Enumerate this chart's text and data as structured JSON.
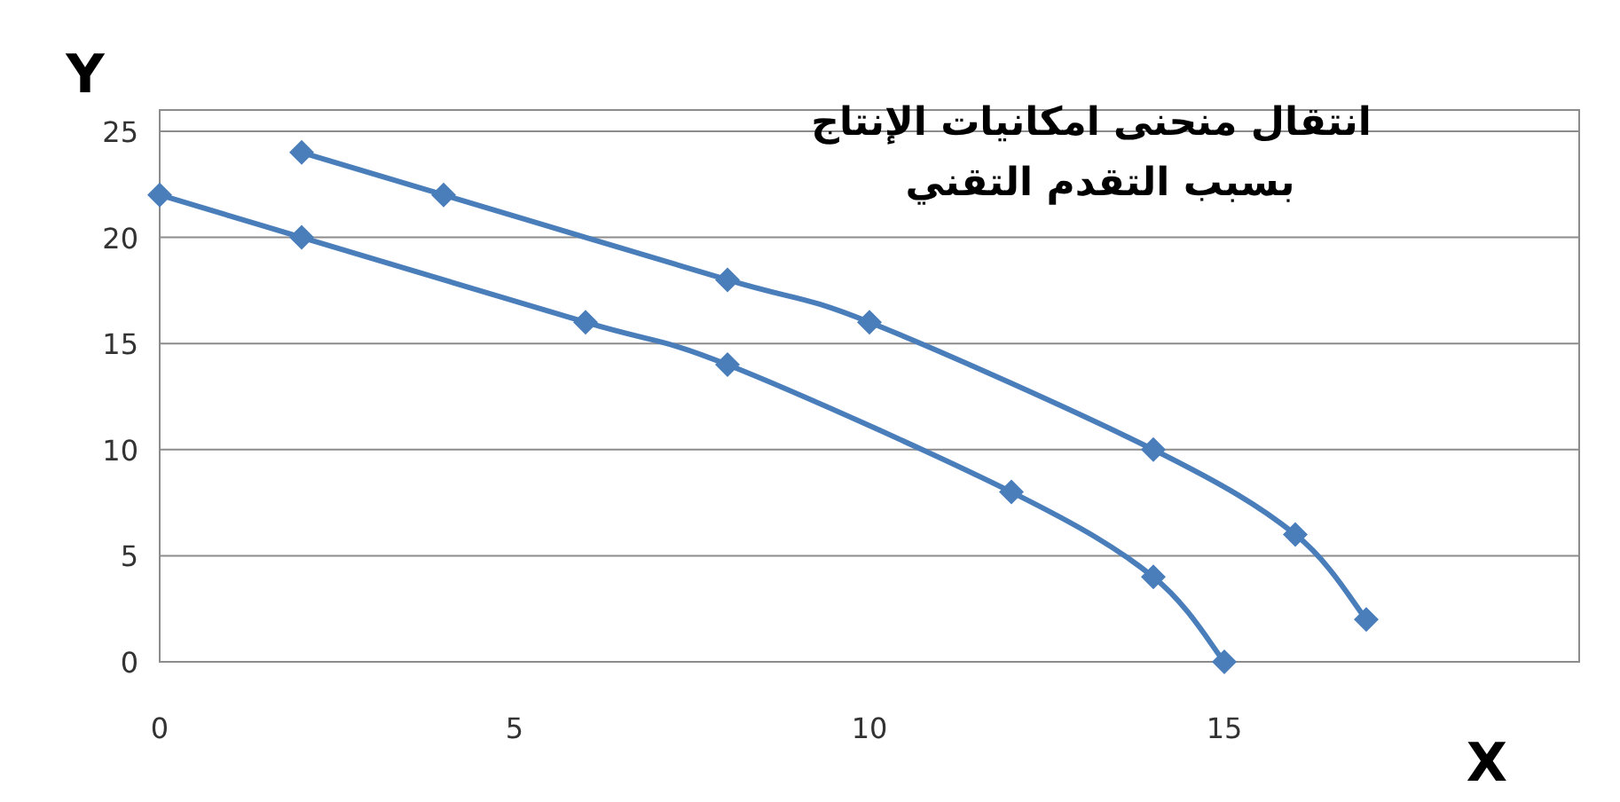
{
  "chart_data": {
    "type": "line",
    "title": "انتقال منحنى امكانيات الإنتاج",
    "subtitle": "بسبب التقدم التقني",
    "xlabel": "X",
    "ylabel": "Y",
    "series": [
      {
        "color": "#4a7ebb",
        "x": [
          0,
          2,
          6,
          8,
          12,
          14,
          15
        ],
        "values": [
          22,
          20,
          16,
          14,
          8,
          4,
          0
        ]
      },
      {
        "color": "#4a7ebb",
        "x": [
          2,
          4,
          8,
          10,
          14,
          16,
          17
        ],
        "values": [
          24,
          22,
          18,
          16,
          10,
          6,
          2
        ]
      }
    ],
    "xlim": [
      0,
      20
    ],
    "ylim": [
      0,
      26
    ],
    "xticks": [
      0,
      5,
      10,
      15
    ],
    "yticks": [
      0,
      5,
      10,
      15,
      20,
      25
    ],
    "grid": "y",
    "marker": "diamond",
    "line_style": "solid"
  }
}
